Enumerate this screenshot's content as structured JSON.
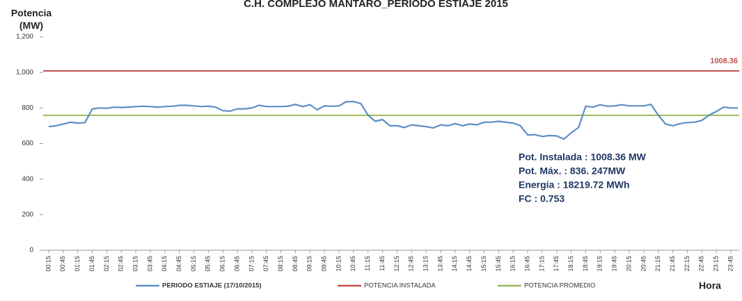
{
  "chart_data": {
    "type": "line",
    "title": "C.H. COMPLEJO MANTARO_PERIODO ESTIAJE 2015",
    "y_label": [
      "Potencia",
      "(MW)"
    ],
    "x_label": "Hora",
    "categories": [
      "00:15",
      null,
      "00:45",
      null,
      "01:15",
      null,
      "01:45",
      null,
      "02:15",
      null,
      "02:45",
      null,
      "03:15",
      null,
      "03:45",
      null,
      "04:15",
      null,
      "04:45",
      null,
      "05:15",
      null,
      "05:45",
      null,
      "06:15",
      null,
      "06:45",
      null,
      "07:15",
      null,
      "07:45",
      null,
      "08:15",
      null,
      "08:45",
      null,
      "09:15",
      null,
      "09:45",
      null,
      "10:15",
      null,
      "10:45",
      null,
      "11:15",
      null,
      "11:45",
      null,
      "12:15",
      null,
      "12:45",
      null,
      "13:15",
      null,
      "13:45",
      null,
      "14:15",
      null,
      "14:45",
      null,
      "15:15",
      null,
      "15:45",
      null,
      "16:15",
      null,
      "16:45",
      null,
      "17:15",
      null,
      "17:45",
      null,
      "18:15",
      null,
      "18:45",
      null,
      "19:15",
      null,
      "19:45",
      null,
      "20:15",
      null,
      "20:45",
      null,
      "21:15",
      null,
      "21:45",
      null,
      "22:15",
      null,
      "22:45",
      null,
      "23:15",
      null,
      "23:45",
      null
    ],
    "series": [
      {
        "name": "PERIODO ESTIAJE (17/10/2015)",
        "color": "#5b8ec6",
        "values": [
          695,
          700,
          710,
          720,
          715,
          718,
          795,
          800,
          798,
          805,
          803,
          805,
          808,
          810,
          808,
          805,
          808,
          810,
          815,
          815,
          812,
          808,
          810,
          805,
          785,
          782,
          795,
          795,
          800,
          815,
          808,
          808,
          808,
          810,
          820,
          808,
          818,
          790,
          812,
          810,
          812,
          835,
          836,
          825,
          760,
          725,
          735,
          700,
          700,
          690,
          705,
          700,
          695,
          688,
          705,
          700,
          712,
          700,
          710,
          705,
          720,
          720,
          725,
          720,
          715,
          700,
          648,
          650,
          640,
          645,
          643,
          625,
          660,
          690,
          810,
          805,
          818,
          810,
          812,
          818,
          812,
          812,
          812,
          820,
          760,
          710,
          700,
          712,
          718,
          720,
          730,
          760,
          780,
          805,
          800,
          800
        ]
      }
    ],
    "reference_lines": [
      {
        "name": "POTENCIA INSTALADA",
        "color": "#c0504d",
        "value": 1008.36
      },
      {
        "name": "POTENCIA PROMEDIO",
        "color": "#9bbb59",
        "value": 759
      }
    ],
    "annotation": [
      "Pot. Instalada : 1008.36 MW",
      "Pot. Máx. : 836. 247MW",
      "Energía  : 18219.72 MWh",
      "FC : 0.753"
    ],
    "ylim": [
      0,
      1200
    ],
    "yticks": [
      0,
      200,
      400,
      600,
      800,
      {
        "value": 1000,
        "label": "1,000"
      },
      {
        "value": 1200,
        "label": "1,200"
      }
    ],
    "grid": false
  }
}
